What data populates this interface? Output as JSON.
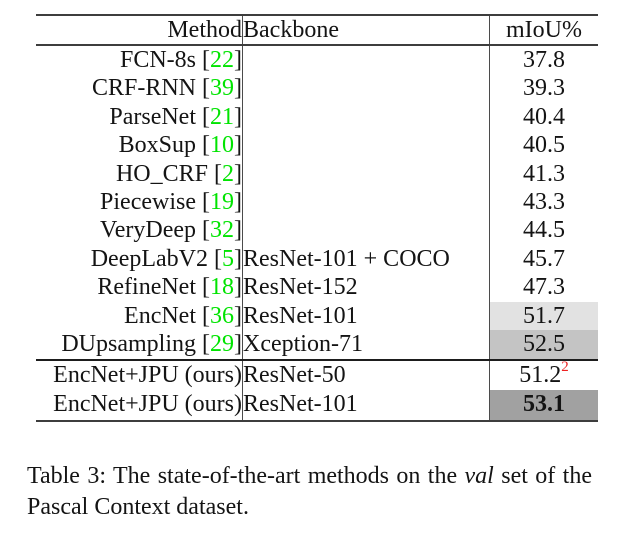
{
  "colors": {
    "citation_green": "#00e400",
    "superscript_red": "#ee2222",
    "highlight_light": "#e2e2e2",
    "highlight_medium": "#c4c4c4",
    "highlight_dark": "#a1a1a1",
    "rule_gray": "#3d3d3d"
  },
  "table": {
    "headers": {
      "method": "Method",
      "backbone": "Backbone",
      "miou": "mIoU%"
    },
    "rows": [
      {
        "method": "FCN-8s",
        "ref": "22",
        "backbone": "",
        "miou": "37.8"
      },
      {
        "method": "CRF-RNN",
        "ref": "39",
        "backbone": "",
        "miou": "39.3"
      },
      {
        "method": "ParseNet",
        "ref": "21",
        "backbone": "",
        "miou": "40.4"
      },
      {
        "method": "BoxSup",
        "ref": "10",
        "backbone": "",
        "miou": "40.5"
      },
      {
        "method": "HO_CRF",
        "ref": "2",
        "backbone": "",
        "miou": "41.3"
      },
      {
        "method": "Piecewise",
        "ref": "19",
        "backbone": "",
        "miou": "43.3"
      },
      {
        "method": "VeryDeep",
        "ref": "32",
        "backbone": "",
        "miou": "44.5"
      },
      {
        "method": "DeepLabV2",
        "ref": "5",
        "backbone": "ResNet-101 + COCO",
        "miou": "45.7"
      },
      {
        "method": "RefineNet",
        "ref": "18",
        "backbone": "ResNet-152",
        "miou": "47.3"
      },
      {
        "method": "EncNet",
        "ref": "36",
        "backbone": "ResNet-101",
        "miou": "51.7",
        "highlight": "light"
      },
      {
        "method": "DUpsampling",
        "ref": "29",
        "backbone": "Xception-71",
        "miou": "52.5",
        "highlight": "medium"
      },
      {
        "method": "EncNet+JPU (ours)",
        "ref": null,
        "backbone": "ResNet-50",
        "miou": "51.2",
        "sup": "2",
        "rule_above": true,
        "group": "ours"
      },
      {
        "method": "EncNet+JPU (ours)",
        "ref": null,
        "backbone": "ResNet-101",
        "miou": "53.1",
        "highlight": "dark",
        "bold": true,
        "group": "ours"
      }
    ]
  },
  "caption": {
    "label": "Table 3:",
    "line1_a": "The state-of-the-art methods on the ",
    "line1_italic": "val",
    "line1_b": " set of the",
    "line2": "Pascal Context dataset."
  }
}
